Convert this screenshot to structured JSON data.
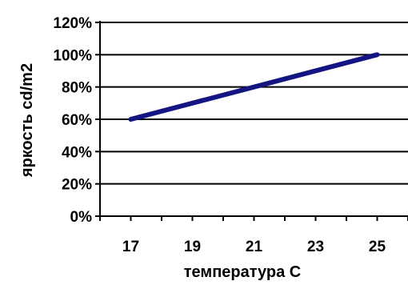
{
  "chart_data": {
    "type": "line",
    "xlabel": "температура C",
    "ylabel": "яркость cd/m2",
    "x_ticks": [
      "17",
      "19",
      "21",
      "23",
      "25"
    ],
    "y_ticks": [
      "0%",
      "20%",
      "40%",
      "60%",
      "80%",
      "100%",
      "120%"
    ],
    "xlim": [
      16,
      26
    ],
    "ylim": [
      0,
      120
    ],
    "grid": true,
    "legend": "none",
    "series": [
      {
        "x": [
          17,
          25
        ],
        "values": [
          60,
          100
        ],
        "color": "#141482"
      }
    ]
  }
}
